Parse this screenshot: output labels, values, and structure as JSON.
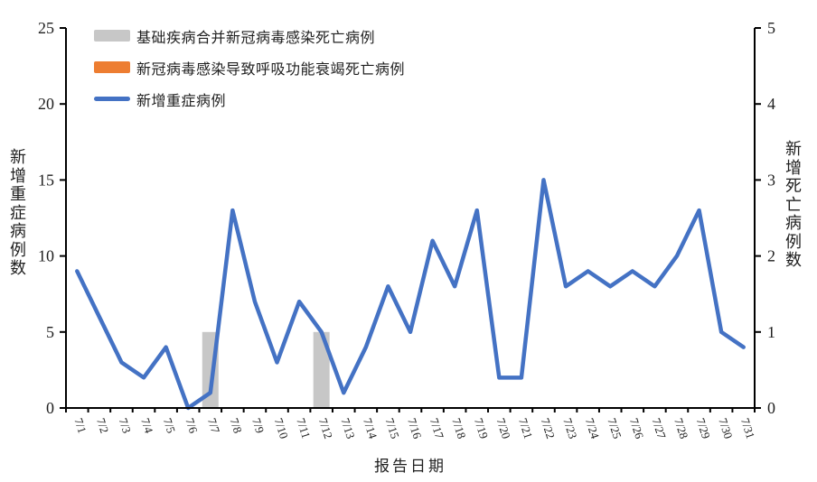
{
  "chart_data": {
    "type": "combo",
    "x": [
      "7/1",
      "7/2",
      "7/3",
      "7/4",
      "7/5",
      "7/6",
      "7/7",
      "7/8",
      "7/9",
      "7/10",
      "7/11",
      "7/12",
      "7/13",
      "7/14",
      "7/15",
      "7/16",
      "7/17",
      "7/18",
      "7/19",
      "7/20",
      "7/21",
      "7/22",
      "7/23",
      "7/24",
      "7/25",
      "7/26",
      "7/27",
      "7/28",
      "7/29",
      "7/30",
      "7/31"
    ],
    "series": [
      {
        "name": "基础疾病合并新冠病毒感染死亡病例",
        "type": "bar",
        "axis": "right",
        "color": "#c7c7c7",
        "values": [
          0,
          0,
          0,
          0,
          0,
          0,
          1,
          0,
          0,
          0,
          0,
          1,
          0,
          0,
          0,
          0,
          0,
          0,
          0,
          0,
          0,
          0,
          0,
          0,
          0,
          0,
          0,
          0,
          0,
          0,
          0
        ]
      },
      {
        "name": "新冠病毒感染导致呼吸功能衰竭死亡病例",
        "type": "bar",
        "axis": "right",
        "color": "#ed7d31",
        "values": [
          0,
          0,
          0,
          0,
          0,
          0,
          0,
          0,
          0,
          0,
          0,
          0,
          0,
          0,
          0,
          0,
          0,
          0,
          0,
          0,
          0,
          0,
          0,
          0,
          0,
          0,
          0,
          0,
          0,
          0,
          0
        ]
      },
      {
        "name": "新增重症病例",
        "type": "line",
        "axis": "left",
        "color": "#4472c4",
        "values": [
          9,
          6,
          3,
          2,
          4,
          0,
          1,
          13,
          7,
          3,
          7,
          5,
          1,
          4,
          8,
          5,
          11,
          8,
          13,
          2,
          2,
          15,
          8,
          9,
          8,
          9,
          8,
          10,
          13,
          5,
          4
        ]
      }
    ],
    "left_axis": {
      "label": "新增重症病例数",
      "min": 0,
      "max": 25,
      "ticks": [
        0,
        5,
        10,
        15,
        20,
        25
      ]
    },
    "right_axis": {
      "label": "新增死亡病例数",
      "min": 0,
      "max": 5,
      "ticks": [
        0,
        1,
        2,
        3,
        4,
        5
      ]
    },
    "xlabel": "报告日期",
    "legend_position": "top-left-inside",
    "grid": false,
    "axis_color": "#000000",
    "text_color": "#1f1f1f",
    "background": "#ffffff"
  }
}
